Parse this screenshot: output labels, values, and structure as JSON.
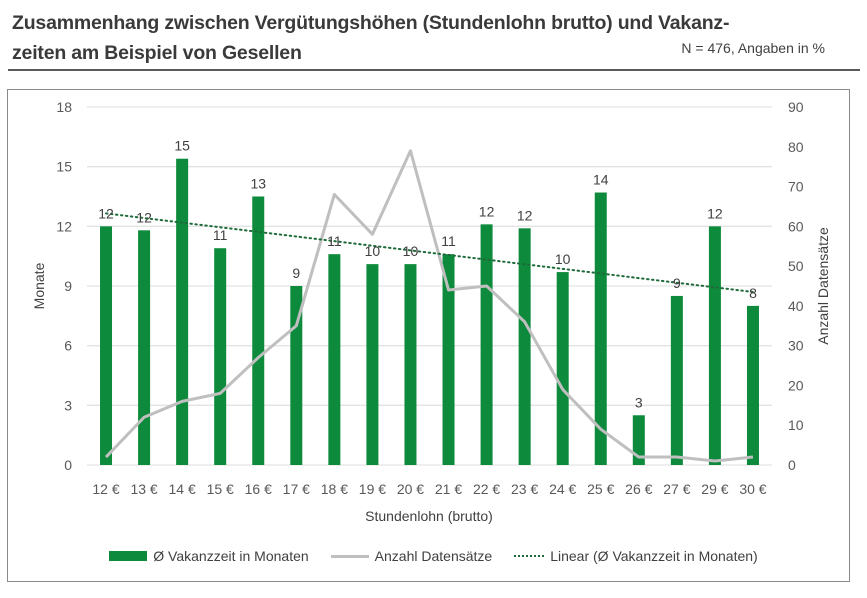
{
  "header": {
    "title": "Zusammenhang zwischen Vergütungshöhen (Stundenlohn brutto) und Vakanz-zeiten am Beispiel von Gesellen",
    "title_line1": "Zusammenhang zwischen Vergütungshöhen (Stundenlohn brutto) und Vakanz-",
    "title_line2": "zeiten am Beispiel von Gesellen",
    "note": "N = 476, Angaben in %"
  },
  "colors": {
    "bar": "#0e8a3c",
    "line": "#bfbfbf",
    "trend": "#1e6b3a",
    "grid": "#e3e3e3"
  },
  "chart_data": {
    "type": "bar",
    "title": "Zusammenhang zwischen Vergütungshöhen (Stundenlohn brutto) und Vakanzzeiten am Beispiel von Gesellen",
    "xlabel": "Stundenlohn (brutto)",
    "ylabel": "Monate",
    "y2label": "Anzahl Datensätze",
    "categories": [
      "12 €",
      "13 €",
      "14 €",
      "15 €",
      "16 €",
      "17 €",
      "18 €",
      "19 €",
      "20 €",
      "21 €",
      "22 €",
      "23 €",
      "24 €",
      "25 €",
      "26 €",
      "27 €",
      "29 €",
      "30 €"
    ],
    "ylim": [
      0,
      18
    ],
    "yticks": [
      0,
      3,
      6,
      9,
      12,
      15,
      18
    ],
    "y2lim": [
      0,
      90
    ],
    "y2ticks": [
      0,
      10,
      20,
      30,
      40,
      50,
      60,
      70,
      80,
      90
    ],
    "grid": true,
    "legend_position": "bottom",
    "series": [
      {
        "name": "Ø Vakanzzeit in Monaten",
        "type": "bar",
        "axis": "left",
        "values": [
          12.0,
          11.8,
          15.4,
          10.9,
          13.5,
          9.0,
          10.6,
          10.1,
          10.1,
          10.6,
          12.1,
          11.9,
          9.7,
          13.7,
          2.5,
          8.5,
          12.0,
          8.0
        ],
        "labels": [
          "12",
          "12",
          "15",
          "11",
          "13",
          "9",
          "11",
          "10",
          "10",
          "11",
          "12",
          "12",
          "10",
          "14",
          "3",
          "9",
          "12",
          "8"
        ]
      },
      {
        "name": "Anzahl Datensätze",
        "type": "line",
        "axis": "right",
        "values": [
          2,
          12,
          16,
          18,
          27,
          35,
          68,
          58,
          79,
          44,
          45,
          36,
          19,
          9,
          2,
          2,
          1,
          2
        ]
      },
      {
        "name": "Linear (Ø Vakanzzeit in Monaten)",
        "type": "trendline",
        "axis": "left",
        "start": 12.65,
        "end": 8.7
      }
    ]
  }
}
